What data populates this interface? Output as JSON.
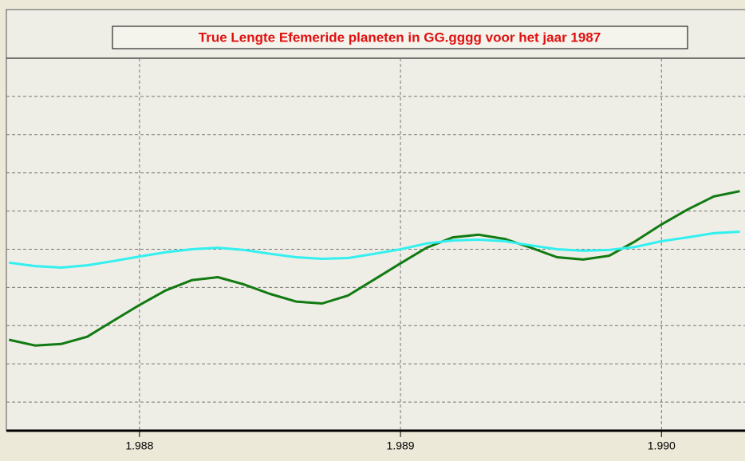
{
  "chart_data": {
    "type": "line",
    "title": "True Lengte Efemeride planeten in GG.gggg voor het jaar 1987",
    "x": [
      1.9875,
      1.9876,
      1.9877,
      1.9878,
      1.9879,
      1.988,
      1.9881,
      1.9882,
      1.9883,
      1.9884,
      1.9885,
      1.9886,
      1.9887,
      1.9888,
      1.9889,
      1.989,
      1.9891,
      1.9892,
      1.9893,
      1.9894,
      1.9895,
      1.9896,
      1.9897,
      1.9898,
      1.9899,
      1.99,
      1.9901,
      1.9902,
      1.9903
    ],
    "series": [
      {
        "color": "#117a11",
        "values": [
          2.63,
          2.48,
          2.52,
          2.71,
          3.13,
          3.54,
          3.92,
          4.19,
          4.27,
          4.08,
          3.83,
          3.63,
          3.58,
          3.79,
          4.21,
          4.63,
          5.04,
          5.31,
          5.38,
          5.27,
          5.04,
          4.79,
          4.73,
          4.83,
          5.21,
          5.65,
          6.04,
          6.38,
          6.52
        ]
      },
      {
        "color": "#33f0f0",
        "values": [
          4.65,
          4.56,
          4.52,
          4.58,
          4.69,
          4.81,
          4.92,
          5.0,
          5.04,
          4.98,
          4.88,
          4.79,
          4.75,
          4.77,
          4.88,
          5.0,
          5.15,
          5.23,
          5.25,
          5.21,
          5.1,
          5.0,
          4.96,
          4.98,
          5.06,
          5.21,
          5.31,
          5.42,
          5.46
        ]
      }
    ],
    "xlim": [
      1.98749,
      1.99032
    ],
    "xticks": [
      1.988,
      1.989,
      {
        "value": 1.99,
        "label": "1.990"
      }
    ],
    "ylim": [
      0.25,
      10
    ],
    "yticks": [
      1,
      2,
      3,
      4,
      5,
      6,
      7,
      8,
      9
    ],
    "grid": true
  }
}
